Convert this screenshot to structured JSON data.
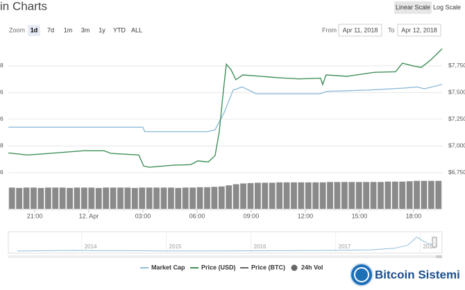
{
  "ui": {
    "title": "in Charts",
    "scale_buttons": [
      "Linear Scale",
      "Log Scale"
    ],
    "zoom_label": "Zoom",
    "zoom_buttons": [
      "1d",
      "7d",
      "1m",
      "3m",
      "1y",
      "YTD",
      "ALL"
    ],
    "from_label": "From",
    "from_value": "Apr 11, 2018",
    "to_label": "To",
    "to_value": "Apr 12, 2018",
    "left_axis_fragments": [
      "6",
      "8",
      "6",
      "6",
      "8"
    ],
    "watermark": "Bitcoin Sistemi"
  },
  "chart_data": {
    "type": "line",
    "xlim": [
      -1.46,
      22.58
    ],
    "xticks": [
      {
        "value": 0,
        "label": "21:00"
      },
      {
        "value": 3,
        "label": "12. Apr"
      },
      {
        "value": 6,
        "label": "03:00"
      },
      {
        "value": 9,
        "label": "06:00"
      },
      {
        "value": 12,
        "label": "09:00"
      },
      {
        "value": 15,
        "label": "12:00"
      },
      {
        "value": 18,
        "label": "15:00"
      },
      {
        "value": 21,
        "label": "18:00"
      }
    ],
    "ylim": [
      6710,
      7977
    ],
    "yticks": [
      {
        "value": 6750,
        "label": "$6,750"
      },
      {
        "value": 7000,
        "label": "$7,000"
      },
      {
        "value": 7250,
        "label": "$7,250"
      },
      {
        "value": 7500,
        "label": "$7,500"
      },
      {
        "value": 7750,
        "label": "$7,750"
      }
    ],
    "y2lim": [
      113.8,
      135.3
    ],
    "grid": true,
    "series": [
      {
        "name": "Market Cap",
        "color": "#8fbcd8",
        "axis": "y2",
        "x": [
          -1.46,
          6.0,
          6.1,
          9.6,
          10.0,
          10.5,
          11.0,
          11.5,
          12.3,
          15.8,
          16.2,
          18.5,
          20.4,
          21.2,
          21.6,
          22.58
        ],
        "values": [
          121.7,
          121.7,
          121.0,
          121.0,
          121.3,
          124.0,
          127.6,
          128.1,
          127.0,
          127.0,
          127.4,
          127.6,
          127.9,
          128.1,
          127.8,
          128.5
        ]
      },
      {
        "name": "Price (USD)",
        "color": "#3f8f5a",
        "x": [
          -1.46,
          -0.38,
          1.15,
          2.69,
          3.85,
          4.23,
          5.77,
          6.04,
          6.35,
          7.69,
          8.65,
          9.04,
          9.62,
          10.0,
          10.23,
          10.46,
          10.62,
          10.88,
          11.15,
          11.54,
          12.69,
          13.46,
          14.62,
          15.85,
          15.96,
          16.15,
          17.31,
          18.85,
          20.0,
          20.38,
          20.96,
          21.42,
          21.92,
          22.58
        ],
        "values": [
          6935,
          6915,
          6935,
          6955,
          6955,
          6930,
          6915,
          6812,
          6800,
          6820,
          6825,
          6860,
          6850,
          6910,
          7130,
          7520,
          7765,
          7715,
          7620,
          7665,
          7650,
          7640,
          7628,
          7634,
          7575,
          7665,
          7652,
          7690,
          7695,
          7775,
          7750,
          7735,
          7800,
          7910
        ]
      }
    ],
    "legend_only": [
      {
        "name": "Price (BTC)",
        "color": "#666666"
      }
    ],
    "volume": {
      "name": "24h Vol",
      "color": "#8a8a8a",
      "ylim": [
        0,
        8
      ],
      "values": [
        5.7,
        5.6,
        5.7,
        5.7,
        5.6,
        5.7,
        5.7,
        5.7,
        5.6,
        5.7,
        5.7,
        5.7,
        5.6,
        5.7,
        5.7,
        5.7,
        5.7,
        5.6,
        5.7,
        5.7,
        5.7,
        5.7,
        5.7,
        5.6,
        5.7,
        5.7,
        5.8,
        5.8,
        5.9,
        6.0,
        6.3,
        6.6,
        6.8,
        6.9,
        7.0,
        7.0,
        7.0,
        7.1,
        7.1,
        7.1,
        7.1,
        7.1,
        7.1,
        7.1,
        7.2,
        7.2,
        7.2,
        7.2,
        7.2,
        7.2,
        7.2,
        7.2,
        7.3,
        7.3,
        7.3,
        7.4,
        7.5,
        7.5,
        7.5,
        7.5
      ]
    },
    "navigator": {
      "xlim": [
        2013.24,
        2018.2
      ],
      "ylim": [
        0,
        20000
      ],
      "color": "#8fbcd8",
      "xticks": [
        2014,
        2015,
        2016,
        2017,
        2018
      ],
      "x": [
        2013.24,
        2013.9,
        2014.1,
        2014.5,
        2015.0,
        2015.5,
        2016.0,
        2016.5,
        2017.0,
        2017.4,
        2017.7,
        2017.85,
        2017.96,
        2018.05,
        2018.1,
        2018.2
      ],
      "values": [
        100,
        900,
        700,
        550,
        250,
        260,
        430,
        650,
        1000,
        1500,
        3500,
        7000,
        17000,
        11000,
        9000,
        7000
      ]
    }
  }
}
